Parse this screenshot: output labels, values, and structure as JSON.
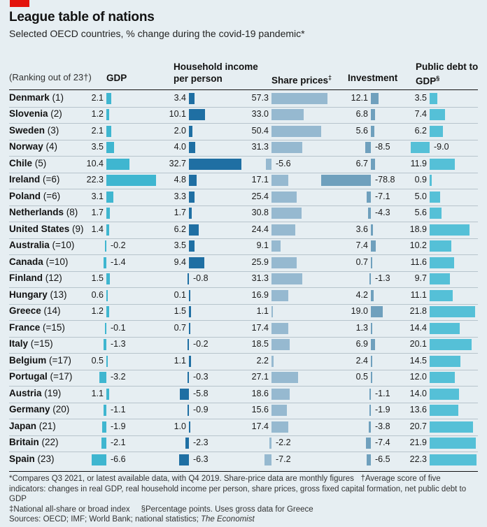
{
  "title": "League table of nations",
  "subtitle": "Selected OECD countries, % change during the covid-19 pandemic*",
  "colors": {
    "gdp": "#3fb6d0",
    "household": "#1f6fa3",
    "shares": "#96b9d0",
    "investment": "#6fa0bd",
    "debt": "#55c0d7",
    "red_tag": "#e3120b",
    "background": "#e6eef2"
  },
  "chart_data": {
    "type": "table",
    "rank_header": "(Ranking out of 23†)",
    "columns": [
      {
        "key": "gdp",
        "label": "GDP",
        "mark": ""
      },
      {
        "key": "household",
        "label": "Household income per person",
        "mark": ""
      },
      {
        "key": "shares",
        "label": "Share prices",
        "mark": "‡"
      },
      {
        "key": "investment",
        "label": "Investment",
        "mark": ""
      },
      {
        "key": "debt",
        "label": "Public debt to GDP",
        "mark": "§"
      }
    ],
    "rows": [
      {
        "country": "Denmark",
        "rank": "(1)",
        "gdp": 2.1,
        "household": 3.4,
        "shares": 57.3,
        "investment": 12.1,
        "debt": 3.5
      },
      {
        "country": "Slovenia",
        "rank": "(2)",
        "gdp": 1.2,
        "household": 10.1,
        "shares": 33.0,
        "investment": 6.8,
        "debt": 7.4
      },
      {
        "country": "Sweden",
        "rank": "(3)",
        "gdp": 2.1,
        "household": 2.0,
        "shares": 50.4,
        "investment": 5.6,
        "debt": 6.2
      },
      {
        "country": "Norway",
        "rank": "(4)",
        "gdp": 3.5,
        "household": 4.0,
        "shares": 31.3,
        "investment": -8.5,
        "debt": -9.0
      },
      {
        "country": "Chile",
        "rank": "(5)",
        "gdp": 10.4,
        "household": 32.7,
        "shares": -5.6,
        "investment": 6.7,
        "debt": 11.9
      },
      {
        "country": "Ireland",
        "rank": "(=6)",
        "gdp": 22.3,
        "household": 4.8,
        "shares": 17.1,
        "investment": -78.8,
        "debt": 0.9
      },
      {
        "country": "Poland",
        "rank": "(=6)",
        "gdp": 3.1,
        "household": 3.3,
        "shares": 25.4,
        "investment": -7.1,
        "debt": 5.0
      },
      {
        "country": "Netherlands",
        "rank": "(8)",
        "gdp": 1.7,
        "household": 1.7,
        "shares": 30.8,
        "investment": -4.3,
        "debt": 5.6
      },
      {
        "country": "United States",
        "rank": "(9)",
        "gdp": 1.4,
        "household": 6.2,
        "shares": 24.4,
        "investment": 3.6,
        "debt": 18.9
      },
      {
        "country": "Australia",
        "rank": "(=10)",
        "gdp": -0.2,
        "household": 3.5,
        "shares": 9.1,
        "investment": 7.4,
        "debt": 10.2
      },
      {
        "country": "Canada",
        "rank": "(=10)",
        "gdp": -1.4,
        "household": 9.4,
        "shares": 25.9,
        "investment": 0.7,
        "debt": 11.6
      },
      {
        "country": "Finland",
        "rank": "(12)",
        "gdp": 1.5,
        "household": -0.8,
        "shares": 31.3,
        "investment": -1.3,
        "debt": 9.7
      },
      {
        "country": "Hungary",
        "rank": "(13)",
        "gdp": 0.6,
        "household": 0.1,
        "shares": 16.9,
        "investment": 4.2,
        "debt": 11.1
      },
      {
        "country": "Greece",
        "rank": "(14)",
        "gdp": 1.2,
        "household": 1.5,
        "shares": 1.1,
        "investment": 19.0,
        "debt": 21.8
      },
      {
        "country": "France",
        "rank": "(=15)",
        "gdp": -0.1,
        "household": 0.7,
        "shares": 17.4,
        "investment": 1.3,
        "debt": 14.4
      },
      {
        "country": "Italy",
        "rank": "(=15)",
        "gdp": -1.3,
        "household": -0.2,
        "shares": 18.5,
        "investment": 6.9,
        "debt": 20.1
      },
      {
        "country": "Belgium",
        "rank": "(=17)",
        "gdp": 0.5,
        "household": 1.1,
        "shares": 2.2,
        "investment": 2.4,
        "debt": 14.5
      },
      {
        "country": "Portugal",
        "rank": "(=17)",
        "gdp": -3.2,
        "household": -0.3,
        "shares": 27.1,
        "investment": 0.5,
        "debt": 12.0
      },
      {
        "country": "Austria",
        "rank": "(19)",
        "gdp": 1.1,
        "household": -5.8,
        "shares": 18.6,
        "investment": -1.1,
        "debt": 14.0
      },
      {
        "country": "Germany",
        "rank": "(20)",
        "gdp": -1.1,
        "household": -0.9,
        "shares": 15.6,
        "investment": -1.9,
        "debt": 13.6
      },
      {
        "country": "Japan",
        "rank": "(21)",
        "gdp": -1.9,
        "household": 1.0,
        "shares": 17.4,
        "investment": -3.8,
        "debt": 20.7
      },
      {
        "country": "Britain",
        "rank": "(22)",
        "gdp": -2.1,
        "household": -2.3,
        "shares": -2.2,
        "investment": -7.4,
        "debt": 21.9
      },
      {
        "country": "Spain",
        "rank": "(23)",
        "gdp": -6.6,
        "household": -6.3,
        "shares": -7.2,
        "investment": -6.5,
        "debt": 22.3
      }
    ]
  },
  "notes": {
    "line1": "*Compares Q3 2021, or latest available data, with Q4 2019. Share-price data are monthly figures",
    "line2": "†Average score of five indicators: changes in real GDP, real household income per person, share prices, gross fixed capital formation, net public debt to GDP",
    "line3": "‡National all-share or broad index",
    "line4": "§Percentage points. Uses gross data for Greece",
    "sources": "Sources: OECD; IMF; World Bank; national statistics;",
    "sources_italic": "The Economist"
  }
}
